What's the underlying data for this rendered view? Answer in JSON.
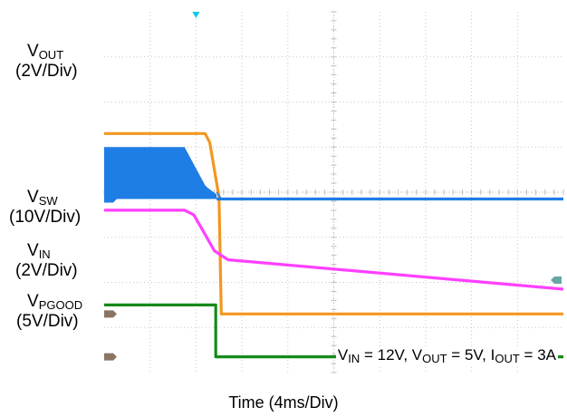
{
  "chart_data": {
    "type": "line",
    "xlabel": "Time (4ms/Div)",
    "divisions": {
      "x": 10,
      "y": 8
    },
    "trigger_marker": {
      "x_div": 2
    },
    "conditions": "VIN = 12V, VOUT = 5V, IOUT = 3A",
    "series": [
      {
        "name": "VOUT",
        "scale": "(2V/Div)",
        "color": "#f39720",
        "marker_color": "#8a7563",
        "ground_div": 1.3,
        "points": [
          [
            0,
            5.3
          ],
          [
            2.2,
            5.3
          ],
          [
            2.3,
            5.1
          ],
          [
            2.45,
            4.2
          ],
          [
            2.5,
            3.9
          ],
          [
            2.55,
            1.3
          ],
          [
            10,
            1.3
          ]
        ]
      },
      {
        "name": "VSW",
        "scale": "(10V/Div)",
        "color": "#1f7de6",
        "marker_color": "#1f7de6",
        "ground_div": 3.85,
        "burst_top_div": 5.0,
        "burst_end_div": 2.45,
        "after_level_div": 3.85
      },
      {
        "name": "VIN",
        "scale": "(2V/Div)",
        "color": "#ff40ff",
        "marker_color": "#66a6a6",
        "ground_div": 2.05,
        "points": [
          [
            0,
            3.6
          ],
          [
            1.75,
            3.6
          ],
          [
            1.95,
            3.5
          ],
          [
            2.15,
            3.15
          ],
          [
            2.4,
            2.7
          ],
          [
            2.7,
            2.5
          ],
          [
            10,
            1.85
          ]
        ]
      },
      {
        "name": "VPGOOD",
        "scale": "(5V/Div)",
        "color": "#168a1a",
        "marker_color": "#8a7563",
        "ground_div": 0.35,
        "points": [
          [
            0,
            1.5
          ],
          [
            2.43,
            1.5
          ],
          [
            2.43,
            0.35
          ],
          [
            10,
            0.35
          ]
        ]
      }
    ]
  },
  "labels": {
    "vout_main": "V",
    "vout_sub": "OUT",
    "vout_scale": "(2V/Div)",
    "vsw_main": "V",
    "vsw_sub": "SW",
    "vsw_scale": "(10V/Div)",
    "vin_main": "V",
    "vin_sub": "IN",
    "vin_scale": "(2V/Div)",
    "vpg_main": "V",
    "vpg_sub": "PGOOD",
    "vpg_scale": "(5V/Div)"
  },
  "conditions_parts": {
    "a_main": "V",
    "a_sub": "IN",
    "a_val": " = 12V, ",
    "b_main": "V",
    "b_sub": "OUT",
    "b_val": " = 5V, ",
    "c_main": "I",
    "c_sub": "OUT",
    "c_val": " = 3A"
  }
}
